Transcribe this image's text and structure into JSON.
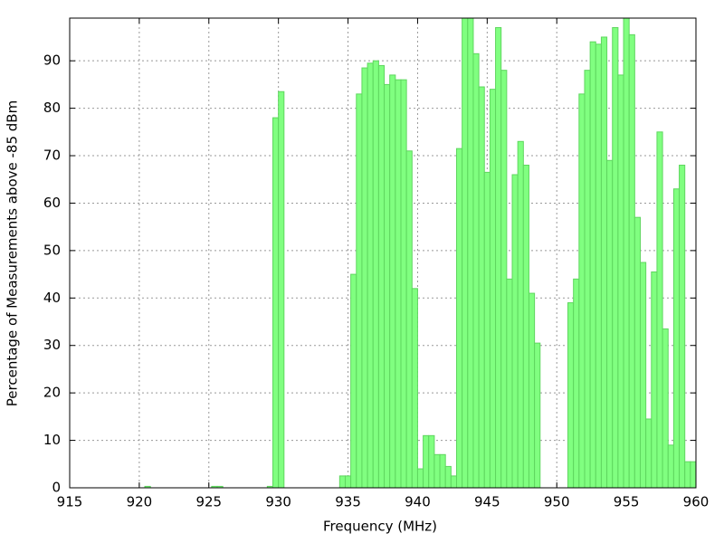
{
  "chart_data": {
    "type": "bar",
    "x_label": "Frequency (MHz)",
    "y_label": "Percentage of Measurements above -85 dBm",
    "color": "#80ff80",
    "edge_color": "#5fd65f",
    "grid": true,
    "x": [
      920.6,
      925.4,
      925.8,
      929.4,
      929.8,
      930.2,
      934.6,
      935.0,
      935.4,
      935.8,
      936.2,
      936.6,
      937.0,
      937.4,
      937.8,
      938.2,
      938.6,
      939.0,
      939.4,
      939.8,
      940.2,
      940.6,
      941.0,
      941.4,
      941.8,
      942.2,
      942.6,
      943.0,
      943.4,
      943.8,
      944.2,
      944.6,
      945.0,
      945.4,
      945.8,
      946.2,
      946.6,
      947.0,
      947.4,
      947.8,
      948.2,
      948.6,
      951.0,
      951.4,
      951.8,
      952.2,
      952.6,
      953.0,
      953.4,
      953.8,
      954.2,
      954.6,
      955.0,
      955.4,
      955.8,
      956.2,
      956.6,
      957.0,
      957.4,
      957.8,
      958.2,
      958.6,
      959.0,
      959.4,
      959.8
    ],
    "values": [
      0.3,
      0.3,
      0.3,
      0.3,
      78,
      83.5,
      2.5,
      2.5,
      45,
      83,
      88.5,
      89.5,
      90,
      89,
      85,
      87,
      86,
      86,
      71,
      42,
      4,
      11,
      11,
      7,
      7,
      4.5,
      2.5,
      71.5,
      99,
      99,
      91.5,
      84.5,
      66.5,
      84,
      97,
      88,
      44,
      66,
      73,
      68,
      41,
      30.5,
      39,
      44,
      83,
      88,
      94,
      93.5,
      95,
      69,
      97,
      87,
      99,
      95.5,
      57,
      47.5,
      14.5,
      45.5,
      75,
      33.5,
      9,
      63,
      68,
      5.5,
      5.5
    ],
    "xlim": [
      915,
      960
    ],
    "ylim": [
      0,
      99
    ],
    "xticks": [
      915,
      920,
      925,
      930,
      935,
      940,
      945,
      950,
      955,
      960
    ],
    "yticks": [
      0,
      10,
      20,
      30,
      40,
      50,
      60,
      70,
      80,
      90
    ]
  }
}
